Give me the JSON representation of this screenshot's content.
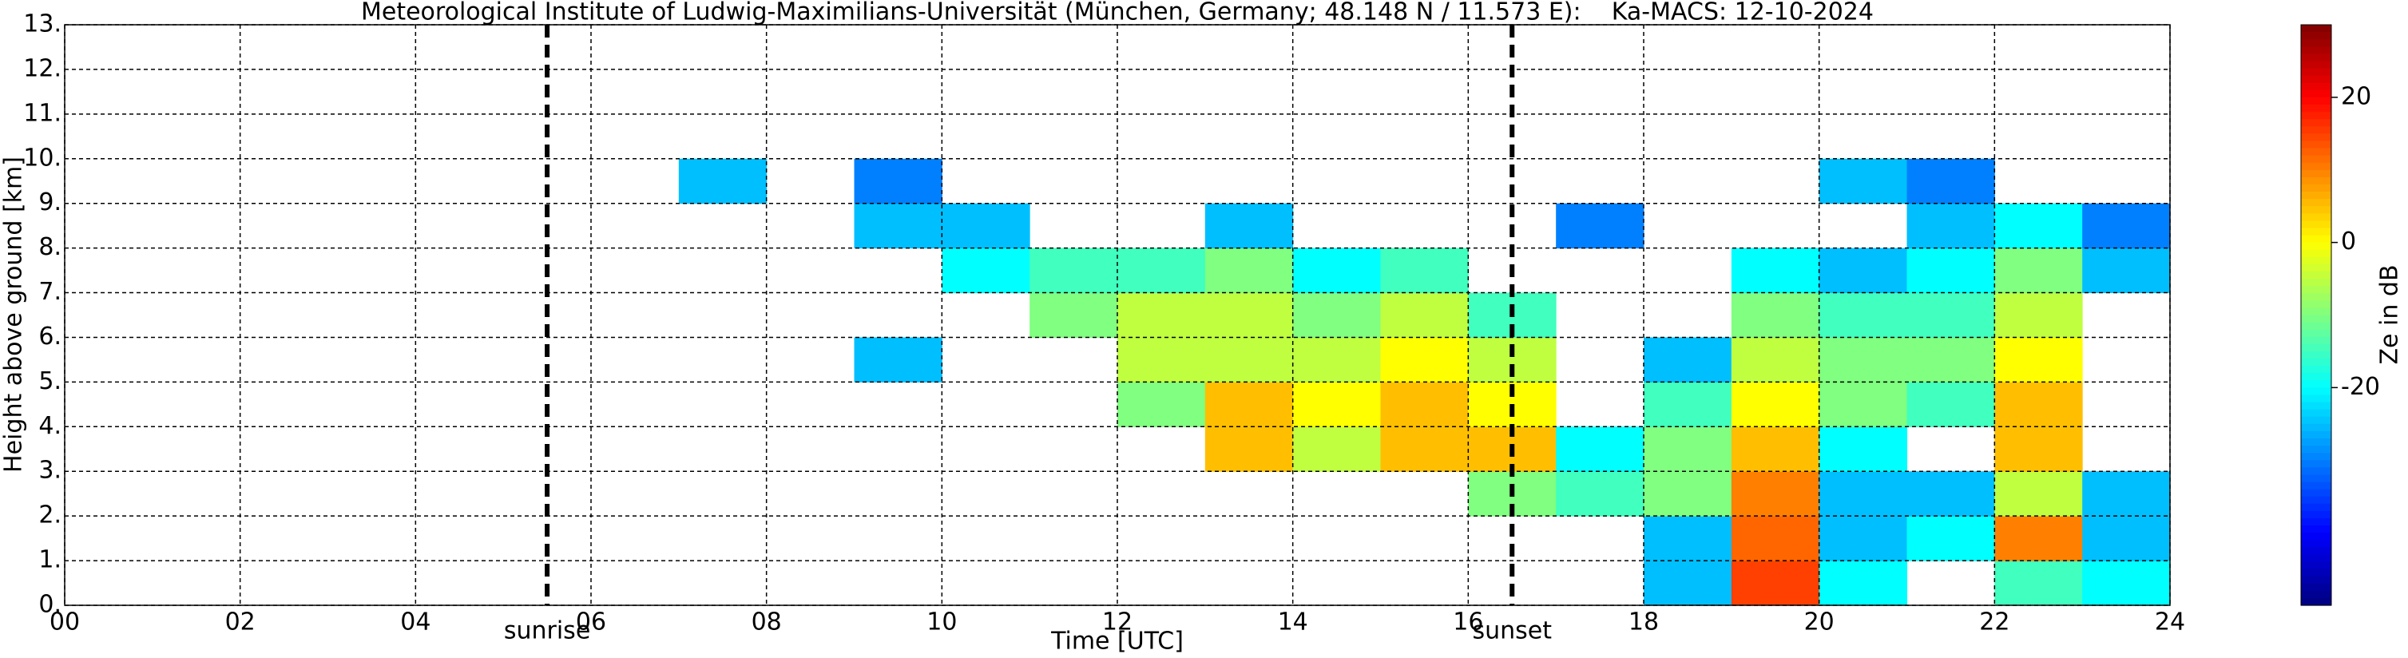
{
  "chart_data": {
    "type": "heatmap",
    "title": "Meteorological Institute of Ludwig-Maximilians-Universität (München, Germany; 48.148 N / 11.573 E):    Ka-MACS: 12-10-2024",
    "xlabel": "Time [UTC]",
    "ylabel": "Height above ground [km]",
    "colorbar_label": "Ze in dB",
    "xlim": [
      0,
      24
    ],
    "ylim": [
      0,
      13
    ],
    "zlim": [
      -50,
      30
    ],
    "colormap": "jet",
    "grid": true,
    "xticks": [
      {
        "value": 0,
        "label": "00"
      },
      {
        "value": 2,
        "label": "02"
      },
      {
        "value": 4,
        "label": "04"
      },
      {
        "value": 6,
        "label": "06"
      },
      {
        "value": 8,
        "label": "08"
      },
      {
        "value": 10,
        "label": "10"
      },
      {
        "value": 12,
        "label": "12"
      },
      {
        "value": 14,
        "label": "14"
      },
      {
        "value": 16,
        "label": "16"
      },
      {
        "value": 18,
        "label": "18"
      },
      {
        "value": 20,
        "label": "20"
      },
      {
        "value": 22,
        "label": "22"
      },
      {
        "value": 24,
        "label": "24"
      }
    ],
    "yticks": [
      {
        "value": 0,
        "label": "0."
      },
      {
        "value": 1,
        "label": "1."
      },
      {
        "value": 2,
        "label": "2."
      },
      {
        "value": 3,
        "label": "3."
      },
      {
        "value": 4,
        "label": "4."
      },
      {
        "value": 5,
        "label": "5."
      },
      {
        "value": 6,
        "label": "6."
      },
      {
        "value": 7,
        "label": "7."
      },
      {
        "value": 8,
        "label": "8."
      },
      {
        "value": 9,
        "label": "9."
      },
      {
        "value": 10,
        "label": "10."
      },
      {
        "value": 11,
        "label": "11."
      },
      {
        "value": 12,
        "label": "12."
      },
      {
        "value": 13,
        "label": "13."
      }
    ],
    "zticks": [
      -20,
      0,
      20
    ],
    "annotations": [
      {
        "text": "sunrise",
        "x": 5.5
      },
      {
        "text": "sunset",
        "x": 16.5
      }
    ],
    "x_bins": [
      0,
      1,
      2,
      3,
      4,
      5,
      6,
      7,
      8,
      9,
      10,
      11,
      12,
      13,
      14,
      15,
      16,
      17,
      18,
      19,
      20,
      21,
      22,
      23,
      24
    ],
    "y_bins": [
      0,
      1,
      2,
      3,
      4,
      5,
      6,
      7,
      8,
      9,
      10,
      11,
      12,
      13
    ],
    "z": [
      [
        null,
        null,
        null,
        null,
        null,
        null,
        null,
        null,
        null,
        null,
        null,
        null,
        null,
        null,
        null,
        null,
        null,
        null,
        -25,
        15,
        -20,
        null,
        -15,
        -20
      ],
      [
        null,
        null,
        null,
        null,
        null,
        null,
        null,
        null,
        null,
        null,
        null,
        null,
        null,
        null,
        null,
        null,
        null,
        null,
        -25,
        12,
        -25,
        -20,
        10,
        -25
      ],
      [
        null,
        null,
        null,
        null,
        null,
        null,
        null,
        null,
        null,
        null,
        null,
        null,
        null,
        null,
        null,
        null,
        -10,
        -15,
        -10,
        10,
        -25,
        -25,
        -5,
        -25
      ],
      [
        null,
        null,
        null,
        null,
        null,
        null,
        null,
        null,
        null,
        null,
        null,
        null,
        null,
        5,
        -5,
        5,
        5,
        -20,
        -10,
        5,
        -20,
        null,
        5,
        null
      ],
      [
        null,
        null,
        null,
        null,
        null,
        null,
        null,
        null,
        null,
        null,
        null,
        null,
        -10,
        5,
        0,
        5,
        0,
        null,
        -15,
        0,
        -10,
        -15,
        5,
        null
      ],
      [
        null,
        null,
        null,
        null,
        null,
        null,
        null,
        null,
        null,
        -25,
        null,
        null,
        -5,
        -5,
        -5,
        0,
        -5,
        null,
        -25,
        -5,
        -10,
        -10,
        0,
        null
      ],
      [
        null,
        null,
        null,
        null,
        null,
        null,
        null,
        null,
        null,
        null,
        null,
        -10,
        -5,
        -5,
        -10,
        -5,
        -15,
        null,
        null,
        -10,
        -15,
        -15,
        -5,
        null
      ],
      [
        null,
        null,
        null,
        null,
        null,
        null,
        null,
        null,
        null,
        null,
        -20,
        -15,
        -15,
        -10,
        -20,
        -15,
        null,
        null,
        null,
        -20,
        -25,
        -20,
        -10,
        -25
      ],
      [
        null,
        null,
        null,
        null,
        null,
        null,
        null,
        null,
        null,
        -25,
        -25,
        null,
        null,
        -25,
        null,
        null,
        null,
        -30,
        null,
        null,
        null,
        -25,
        -20,
        -30
      ],
      [
        null,
        null,
        null,
        null,
        null,
        null,
        null,
        -25,
        null,
        -30,
        null,
        null,
        null,
        null,
        null,
        null,
        null,
        null,
        null,
        null,
        -25,
        -30,
        null,
        null
      ],
      [
        null,
        null,
        null,
        null,
        null,
        null,
        null,
        null,
        null,
        null,
        null,
        null,
        null,
        null,
        null,
        null,
        null,
        null,
        null,
        null,
        null,
        null,
        null,
        null
      ],
      [
        null,
        null,
        null,
        null,
        null,
        null,
        null,
        null,
        null,
        null,
        null,
        null,
        null,
        null,
        null,
        null,
        null,
        null,
        null,
        null,
        null,
        null,
        null,
        null
      ],
      [
        null,
        null,
        null,
        null,
        null,
        null,
        null,
        null,
        null,
        null,
        null,
        null,
        null,
        null,
        null,
        null,
        null,
        null,
        null,
        null,
        null,
        null,
        null,
        null
      ]
    ]
  }
}
